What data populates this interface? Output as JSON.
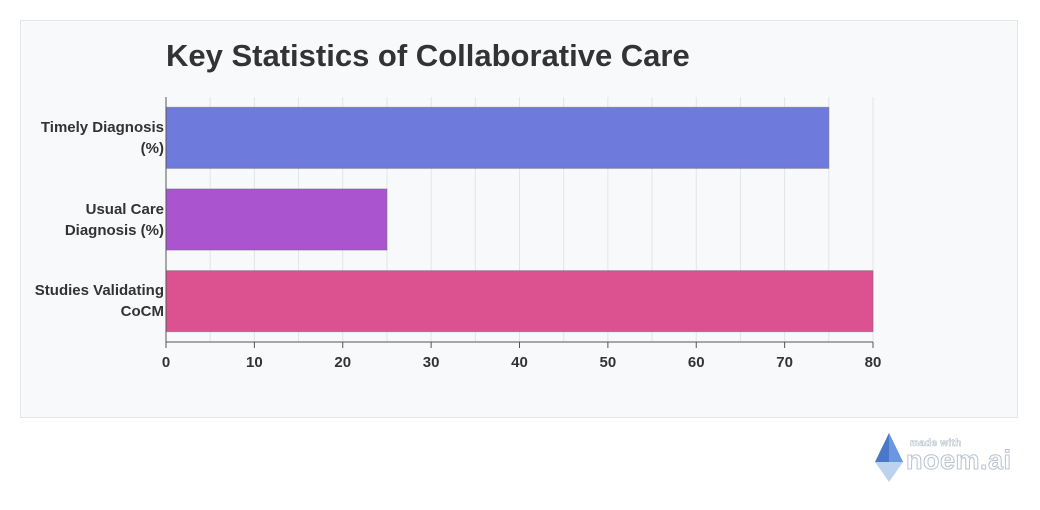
{
  "chart_data": {
    "type": "bar",
    "orientation": "horizontal",
    "title": "Key Statistics of Collaborative Care",
    "categories": [
      [
        "Timely Diagnosis",
        "(%)"
      ],
      [
        "Usual Care",
        "Diagnosis (%)"
      ],
      [
        "Studies Validating",
        "CoCM"
      ]
    ],
    "values": [
      75,
      25,
      80
    ],
    "colors": [
      "#6f7bdc",
      "#aa55cf",
      "#dc5290"
    ],
    "xlim": [
      0,
      80
    ],
    "xticks": [
      0,
      10,
      20,
      30,
      40,
      50,
      60,
      70,
      80
    ],
    "grid": true,
    "legend": "none"
  },
  "watermark": {
    "small_text": "made with",
    "big_text": "noem.ai",
    "icon": "noem-logo-icon"
  }
}
